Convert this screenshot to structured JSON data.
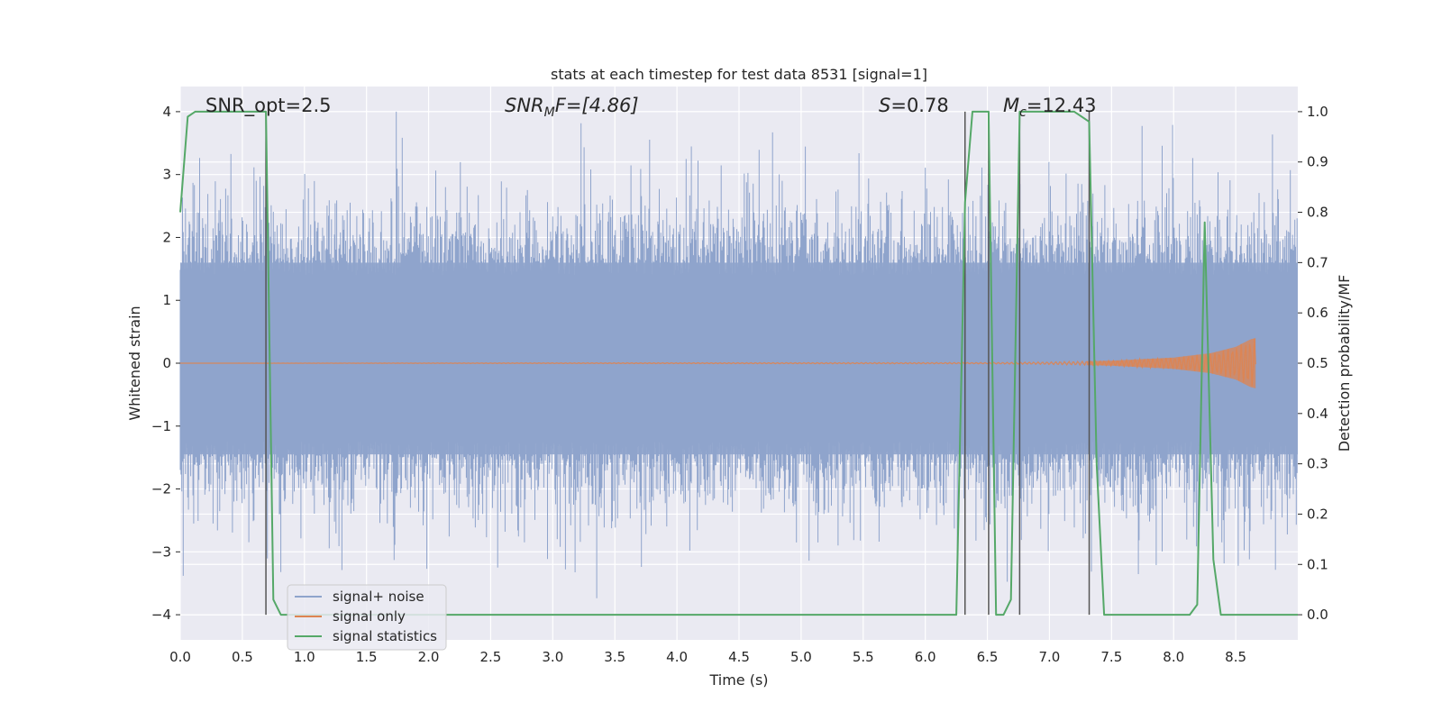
{
  "chart_data": {
    "type": "line",
    "title": "stats at each timestep for test data 8531 [signal=1]",
    "xlabel": "Time (s)",
    "ylabel": "Whitened strain",
    "ylabel_right": "Detection probability/MF",
    "xlim": [
      0.0,
      9.0
    ],
    "ylim": [
      -4.4,
      4.4
    ],
    "ylim_right": [
      -0.05,
      1.05
    ],
    "x_ticks": [
      "0.0",
      "0.5",
      "1.0",
      "1.5",
      "2.0",
      "2.5",
      "3.0",
      "3.5",
      "4.0",
      "4.5",
      "5.0",
      "5.5",
      "6.0",
      "6.5",
      "7.0",
      "7.5",
      "8.0",
      "8.5"
    ],
    "y_ticks": [
      "4",
      "3",
      "2",
      "1",
      "0",
      "−1",
      "−2",
      "−3",
      "−4"
    ],
    "y_ticks_right": [
      "1.0",
      "0.9",
      "0.8",
      "0.7",
      "0.6",
      "0.5",
      "0.4",
      "0.3",
      "0.2",
      "0.1",
      "0.0"
    ],
    "grid": true,
    "legend_position": "lower-left",
    "annotations": {
      "snr_opt": "SNR_opt=2.5",
      "snr_mf_base": "SNR",
      "snr_mf_sub": "M",
      "snr_mf_rest": "F=[4.86]",
      "s_base": "S",
      "s_rest": "=0.78",
      "mc_base": "M",
      "mc_sub": "c",
      "mc_rest": "=12.43"
    },
    "vertical_markers_x": [
      0.69,
      6.32,
      6.51,
      6.76,
      7.32
    ],
    "series": [
      {
        "name": "signal+ noise",
        "axis": "left",
        "color": "#8fa4cc",
        "description": "dense noisy strain around zero",
        "envelope": {
          "core_upper": 1.6,
          "core_lower": -1.45,
          "peak_max": 4.0,
          "peak_min": -3.75
        }
      },
      {
        "name": "signal only",
        "axis": "left",
        "color": "#dd8452",
        "x": [
          0.0,
          6.5,
          7.0,
          7.5,
          8.0,
          8.3,
          8.5,
          8.62,
          8.66
        ],
        "amplitude": [
          0.0,
          0.01,
          0.02,
          0.04,
          0.09,
          0.16,
          0.26,
          0.38,
          0.4
        ]
      },
      {
        "name": "signal statistics",
        "axis": "right",
        "color": "#55a868",
        "x": [
          0.0,
          0.06,
          0.12,
          0.18,
          0.25,
          0.31,
          0.37,
          0.44,
          0.5,
          0.56,
          0.62,
          0.69,
          0.75,
          0.81,
          0.9,
          1.0,
          2.0,
          3.0,
          4.0,
          5.0,
          6.0,
          6.25,
          6.32,
          6.38,
          6.44,
          6.51,
          6.57,
          6.63,
          6.69,
          6.76,
          6.82,
          7.0,
          7.2,
          7.32,
          7.38,
          7.44,
          7.5,
          8.0,
          8.13,
          8.19,
          8.25,
          8.32,
          8.38,
          8.5,
          9.0
        ],
        "y": [
          0.8,
          0.99,
          1.0,
          1.0,
          1.0,
          1.0,
          1.0,
          1.0,
          1.0,
          1.0,
          1.0,
          1.0,
          0.03,
          0.0,
          0.0,
          0.0,
          0.0,
          0.0,
          0.0,
          0.0,
          0.0,
          0.0,
          0.82,
          1.0,
          1.0,
          1.0,
          0.0,
          0.0,
          0.03,
          1.0,
          1.0,
          1.0,
          1.0,
          0.98,
          0.3,
          0.0,
          0.0,
          0.0,
          0.0,
          0.02,
          0.78,
          0.11,
          0.0,
          0.0,
          0.0
        ]
      }
    ]
  },
  "legend": {
    "items": [
      {
        "label": "signal+ noise",
        "color": "#8fa4cc"
      },
      {
        "label": "signal only",
        "color": "#dd8452"
      },
      {
        "label": "signal statistics",
        "color": "#55a868"
      }
    ]
  }
}
